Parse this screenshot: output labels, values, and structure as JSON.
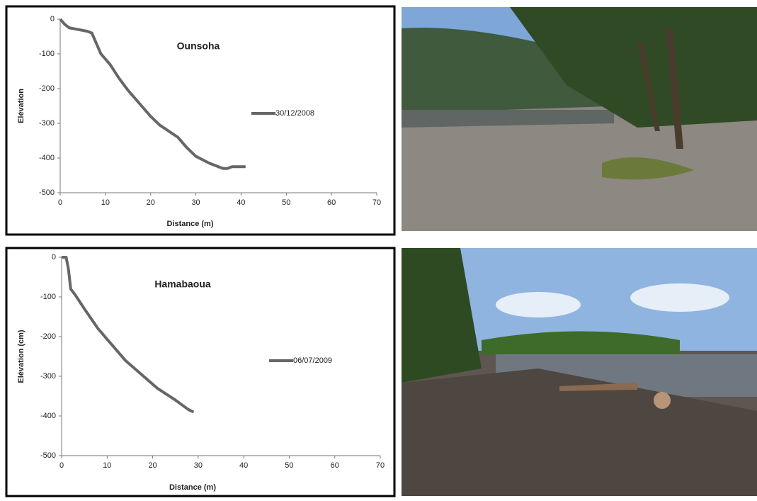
{
  "chart_data": [
    {
      "type": "line",
      "title": "Ounsoha",
      "x_label": "Distance (m)",
      "y_label": "Elévation",
      "legend": "right",
      "xlim": [
        0,
        70
      ],
      "xticks": [
        0,
        10,
        20,
        30,
        40,
        50,
        60,
        70
      ],
      "ylim": [
        -500,
        0
      ],
      "yticks": [
        -500,
        -400,
        -300,
        -200,
        -100,
        0
      ],
      "series": [
        {
          "name": "30/12/2008",
          "color": "#666666",
          "x": [
            0,
            1,
            2,
            4,
            6,
            7,
            8,
            9,
            11,
            13,
            15,
            18,
            20,
            22,
            26,
            28,
            30,
            33,
            36,
            37,
            38,
            40,
            41
          ],
          "values": [
            0,
            -15,
            -25,
            -30,
            -35,
            -40,
            -70,
            -100,
            -130,
            -170,
            -205,
            -250,
            -280,
            -305,
            -340,
            -370,
            -395,
            -415,
            -430,
            -430,
            -425,
            -425,
            -425
          ]
        }
      ]
    },
    {
      "type": "line",
      "title": "Hamabaoua",
      "x_label": "Distance (m)",
      "y_label": "Elévation (cm)",
      "legend": "right",
      "xlim": [
        0,
        70
      ],
      "xticks": [
        0,
        10,
        20,
        30,
        40,
        50,
        60,
        70
      ],
      "ylim": [
        -500,
        0
      ],
      "yticks": [
        -500,
        -400,
        -300,
        -200,
        -100,
        0
      ],
      "series": [
        {
          "name": "06/07/2009",
          "color": "#666666",
          "x": [
            0,
            1,
            1.5,
            2,
            3,
            5,
            8,
            11,
            14,
            18,
            21,
            25,
            28,
            29
          ],
          "values": [
            0,
            0,
            -30,
            -80,
            -95,
            -130,
            -180,
            -220,
            -260,
            -300,
            -330,
            -360,
            -385,
            -390
          ]
        }
      ]
    }
  ]
}
